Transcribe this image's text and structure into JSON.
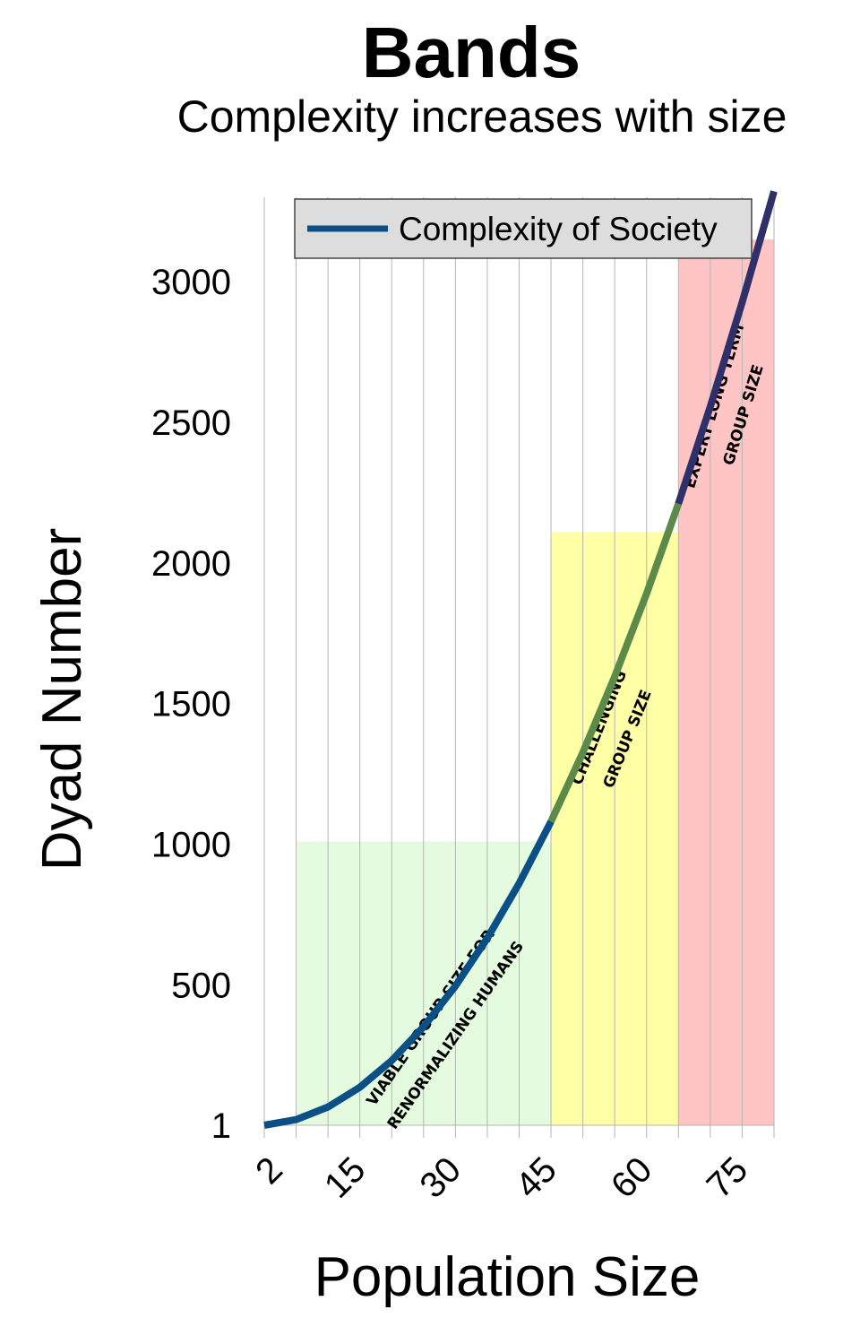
{
  "chart_data": {
    "type": "line",
    "title": "Bands",
    "subtitle": "Complexity increases with size",
    "xlabel": "Population Size",
    "ylabel": "Dyad Number",
    "x_ticks": [
      "2",
      "15",
      "30",
      "45",
      "60",
      "75"
    ],
    "y_ticks": [
      "1",
      "500",
      "1000",
      "1500",
      "2000",
      "2500",
      "3000"
    ],
    "xlim": [
      2,
      82
    ],
    "ylim": [
      1,
      3300
    ],
    "grid": "vertical",
    "legend": {
      "position": "top-right",
      "entries": [
        "Complexity of Society"
      ]
    },
    "series": [
      {
        "name": "Complexity of Society",
        "x": [
          2,
          7,
          12,
          17,
          22,
          27,
          32,
          37,
          42,
          47,
          52,
          57,
          62,
          67,
          72,
          77,
          82
        ],
        "y": [
          1,
          21,
          66,
          136,
          231,
          351,
          496,
          666,
          861,
          1081,
          1326,
          1596,
          1891,
          2211,
          2556,
          2926,
          3321
        ],
        "colors": [
          "#0a4f86",
          "#5c8a4a",
          "#2f2f6a"
        ]
      }
    ],
    "regions": [
      {
        "x": [
          7,
          47
        ],
        "y": [
          1,
          1010
        ],
        "color": "#e4fbe0",
        "label": [
          "VIABLE GROUP SIZE FOR",
          "RENORMALIZING HUMANS"
        ]
      },
      {
        "x": [
          47,
          67
        ],
        "y": [
          1,
          2110
        ],
        "color": "#ffffa6",
        "label": [
          "CHALLENGING",
          "GROUP SIZE"
        ]
      },
      {
        "x": [
          67,
          82
        ],
        "y": [
          1,
          3150
        ],
        "color": "#ffc4c4",
        "label": [
          "EXPERT LONG TERM",
          "GROUP SIZE"
        ]
      }
    ]
  }
}
